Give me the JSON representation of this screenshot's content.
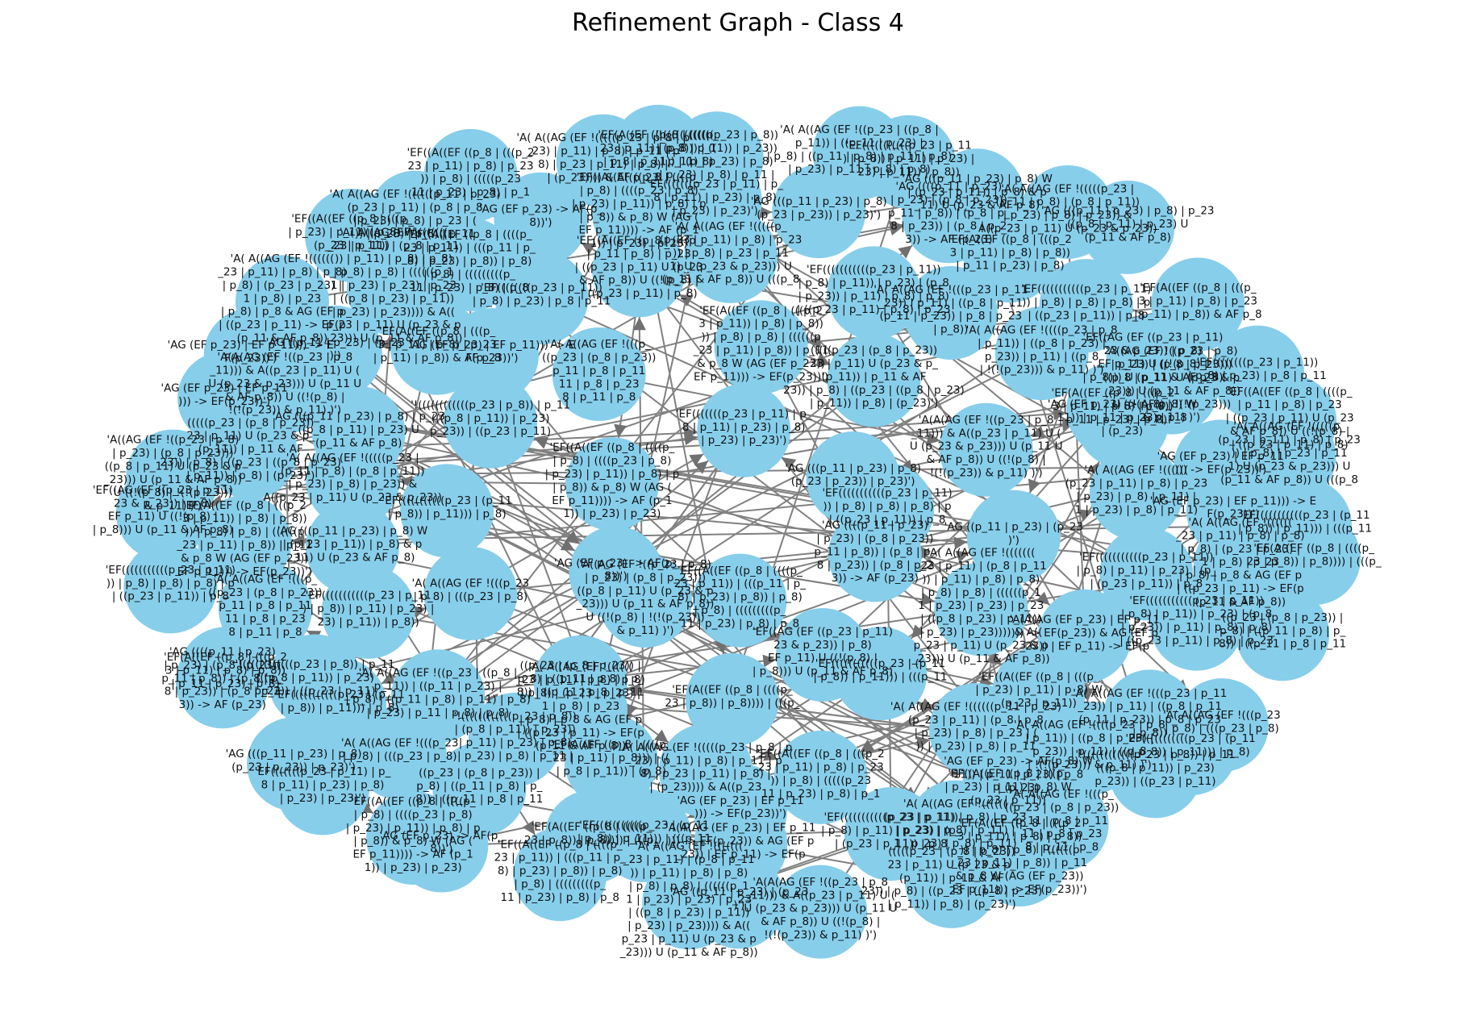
{
  "title": "Refinement Graph - Class 4",
  "colors": {
    "node": "#87CEEB",
    "edge": "#808080",
    "arrow": "#707070",
    "background": "#ffffff"
  },
  "labels": [
    "'EF(((((((((((p_23 | (p_11\n| p_8)) | p_11))) | (((p_11",
    "'EF(A((EF ((p_8 | ((((p_\n23 | p_8)) | p_8)))) | (((p_",
    "((p_23 | (p_8 | p_23)) |\np_8) | ((p_11 | p_8) | p_\n8)) | ((p_11 | p_8 | p_11",
    "'A( A((AG (EF !(((p_23\n| p_8) | (((p_23 | p_8)",
    "'EF(((((((((((p_23 | (p_11\n| p_8)) | p_11))) | p_8)",
    "'!((((((((((((p_23 | p_8)) | p_11\n(((p_8 | p_11)) | p_23)\np_23)) | ((p_23 | p_11)",
    "'A( A((AG (EF !(((p_\n((p_23 | (p_8 | p_23))\np_11 | p_8 | p_11\n11 | p_8 | p_23\n8 | p_11 | p_8",
    "'EF(A((EF ((p_8 | (((p_2\n3 | p_11)) | p_8) | p_8))\n)) | p_8) | p_8) | ((((((p\n_23 | p_11) | p_8)) | p_11\n& p_8 W (AG (EF p_23))\nEF p_11))) -> EF(p_23))')",
    "(((((p_23 | (p_8 | p_23))\n23 | p_11) U (p_23 & p_\n(p_11)) | p_11 & AF\n23)) | p_8) | ((p_23 | ((p_8 | p_23)\n| p_11)) | p_8) | (p_23)')",
    "'A(A(AG (EF !((p_23 | p_8\n_11))) & A((p_23 | p_11) U (\nU (p_23 & p_23))) U (p_11 U\n& AF p_8)) U ((!(p_8) |\n!(!(p_23)) & p_11) )')",
    "'AG ((p_11 | p_23) | (p_23\n)')",
    "'A( A((AG (EF !(((((((\n_23 | p_11) | (p_8 | p_11\n)) | p_11) | p_8) | p_8)\n| p_8) | p_8) | ((((((p_1\n1 | p_23) | p_23) | p_23\n| ((p_8 | p_23) | p_11))\n| p_23) | p_23)))) & A((\np_23 | p_11) U (p_23 & p\n_23))) U (p_11 & AF p_8))",
    "'EF((A((EF ((p_8 | ((((p_\n23 | p_11)) | (((p_11 | p_\n8) | p_23) | p_8)) | p_8)\n| p_8) | (((((((((p_\n11 | p_23) | p_8) | p_8",
    "'AG (EF p_23) -> AF(p_\n8))')",
    "'EF((A((EF ((p_8 | ((((p_\n| p_8) | ((((p_23 | p_8)\n| p_23) | p_11)) | p_8) | p\n| p_8)) & p_8) W (AG (\nEF p_11)))) -> AF (p_1\n1)) | p_23) | p_23)",
    "'EF(((((((p_23 | p_11) | p_\n8 | p_11) | p_23) | p_8)\n| p_23) | p_23)')",
    "'AG (((p_11 | p_23) | p_8)\n(p_23 | p_23)) | p_23)')",
    "'AG ((((p_11 | p_23)\n| p_23) | (p_8 | p_23))\np_11 | p_8)) | (p_8 | p_\n8 | p_23)) | (p_8 | p_2\n3)) -> AF (p_23)",
    "'EF(A((EF ((p_8 | (((p_2\n3 | p_11) | p_8) | p_8))\n| p_11 | p_23) | p_8)",
    "'EF(((((((((((p_23 | p_11)\n)) | p_8) | p_8) | p_8) | p\n| ((p_23 | p_11)) | p_8",
    "'EF((AG (EF ((p_23 | p_11)\n23 & p_23)) | p_8)\nEF p_11) U ((!(p_8) |\n| p_8))) U (p_11 & AF p_8)",
    "'A((AG (EF !((p_23 | p_8)\n| p_23) | (p_8 | p_23)))\n((p_8 | p_11) U (p_23 & p\n_23))) U (p_11 & AF p_8))\nU ((!(p_8) | !(!(p_23)))\n& p_11) )')",
    "'AG (EF p_23) | EF p_11\n))) -> EF(p_23))')",
    "'AG (EF p_23) | EF p_11))) -> E\nF(p_23))')",
    "'A( A((AG (EF !((((((\n_23 | p_11) | p_8) | p_8)\n| p_8) | (p_23 | p_23) |\n1 | p_8) | p_23\n| p_8) | p_8 & AG (EF p\n| ((p_23 | p_11) -> EF(p\n(p_11 & AF p_8))",
    "'EF((A((EF ((p_8 | (((p_\n| p_23) | p_11) | p_8) W\n(p_23 | p_11))",
    "'A( A((AG (EF !((((((p_11 | p_23)\n(p_23 | p_11) | (p_8 | p_8\n| p_23) | p_8) | p_23 | (\n)) | p_23) | p_8) | p_11",
    "'EF((A((EF ((p_8 | (((p_2\n23 | p_11) | p_8) | p_23\n)) | p_8) | (((((p_23\n11 | p_23) | p_8) | p_1",
    "'A( A((AG (EF !(((((p_23 | p_8 | p\n_23) | p_11) | p_8) | p_11 | p\n8) | p_23 | p_11) | p_8) |\n| (p_23)))) & A((p_23",
    "'EF(A((EF ((p_8 | ((((p_\n23 | p_11) | p_8))) | ((\n| p_8 | p_11)) | (p_8)",
    "'!((((((((((((p_23 | p_8))\n| (p_8 | p_11)) | p_23))\n| p_11) | p_23) | p_8)\n| p_23) | p_8) | p_11 |",
    "'A( A((AG (EF !((p_23 | ((p_8 |\np_11)) | ((p_11 | p_23) |\n| p_8) | ((p_11 | p_8) | p_11) | p_8)\n| p_23) | p_11 | p_8) | p_8)",
    "'EF(((((((((((p_23 | p_11\n) | p_8)) | p_11) | p_23) |\n23) | p_11)) | p_8))",
    "'AG (((p_11 | p_23) | p_8) W\n| (p_23 | p_11)) | p_8) & p\n_11) U (p_23 & AF p_8)",
    "'A( A((AG (EF !(((((p_23 |\n(p_11 | p_8) | (p_8 | p_11))\n| p_23) | p_8) | p_23)) &\nA((p_23 | p_11) U (p_23 & p_23))",
    "'AG (((p_11 | p_23) | p_8) | p_23\n((p_8 | p_11) | p_23) U\n(p_11 & AF p_8)",
    "'EF(A((EF ((p_8 | (((p_\n3 | p_11) | p_8) | p_23\n| p_11) | p_8)) & AF p_8",
    "'EF((((((((p_23 | p_11))\n| p_8) | p_23) | p_8 | p_11",
    "'EF((A((EF ((p_8 | ((((p_\n| p_11 | p_8) | p_23\n| ((p_23 | p_11) U (p_23\n& AF p_8)) U ((!(p_8) |\n| ((p_23 | p_11) | p_8)",
    "'A( A((AG (EF !(((((p_\n(p_23 | p_11) | p_8) | p_23\n)) | p_8) | p_23 | p_11\n1) U (p_23 & p_23))) U\n(p_11 & AF p_8)) U (((p_8",
    "'EF(((((((((((p_23 | p_11))\n| p_8) | p_11)) | p_23) | (p_8\n| p_23)) | p_11) | p_8) | p_8)\n| ((p_23 | p_11) | p_8) | p_23",
    "'A( A((AG (EF !(((p_23 | p_11\n_23)) | p_11) | ((p_8 | p_11\n(p_11 | p_23)) | p_8 | p_23\n| p_8))",
    "'A( A((AG (EF !((((p_23 | p_8\n| p_11)) | ((p_8 | p_23) |\np_23)) | p_11) | ((p_8\n| !(!(p_23))) & p_11) )')",
    "'AG (EF p_23) -> AF(p_8) W\n11)) | p_11 | p_23) | p_8\n| (p_23)",
    "'A( A((AG (EF !((((((\n(p_23 | p_11) | p_8) | p_23\n| p_23) | p_8) | p_11) |\n1 | p_23) | p_8) | p_11)",
    "'EF(((((((((((p_23 | p_11))\n| p_8) | p_11) | p_23) | (p_\n| (p_23 | p_11)) | p_8",
    "'A(A(AG (EF p_23) | EF p_11\n))) -> EF(p_23)) & AG (EF p\n_23)) | EF p_11) -> EF(p"
  ]
}
